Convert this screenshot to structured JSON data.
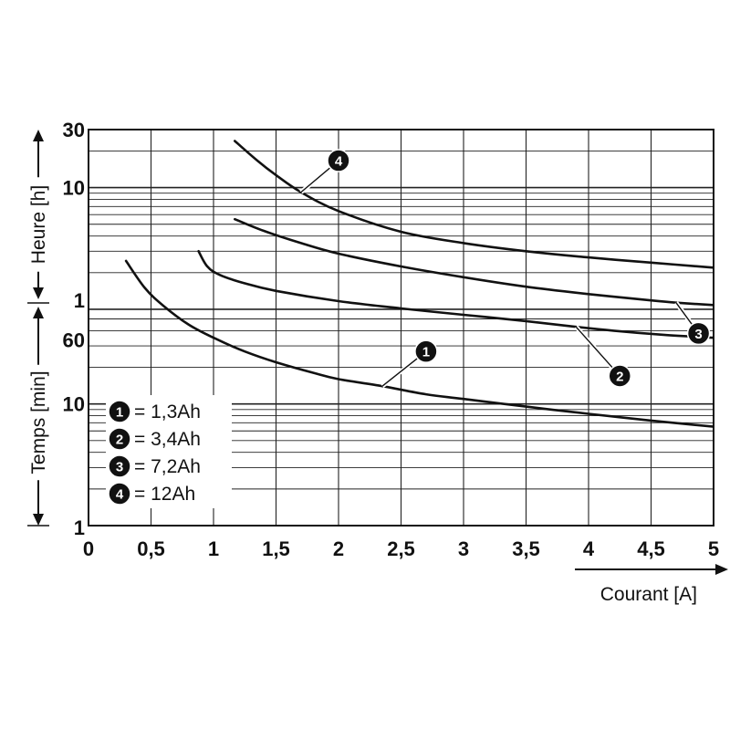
{
  "chart_data": {
    "type": "line",
    "x_axis": {
      "label": "Courant [A]",
      "range": [
        0,
        5
      ],
      "ticks": [
        {
          "value": 0,
          "label": "0"
        },
        {
          "value": 0.5,
          "label": "0,5"
        },
        {
          "value": 1,
          "label": "1"
        },
        {
          "value": 1.5,
          "label": "1,5"
        },
        {
          "value": 2,
          "label": "2"
        },
        {
          "value": 2.5,
          "label": "2,5"
        },
        {
          "value": 3,
          "label": "3"
        },
        {
          "value": 3.5,
          "label": "3,5"
        },
        {
          "value": 4,
          "label": "4"
        },
        {
          "value": 4.5,
          "label": "4,5"
        },
        {
          "value": 5,
          "label": "5"
        }
      ]
    },
    "y_axis": {
      "scale": "log",
      "unit": "min",
      "range_minutes": [
        1,
        1800
      ],
      "upper_label": "Heure [h]",
      "lower_label": "Temps [min]",
      "tick_labels": [
        {
          "value_minutes": 1800,
          "label": "30"
        },
        {
          "value_minutes": 600,
          "label": "10"
        },
        {
          "value_minutes": 60,
          "label": "1"
        },
        {
          "value_minutes": 40,
          "label": "60"
        },
        {
          "value_minutes": 10,
          "label": "10"
        },
        {
          "value_minutes": 1,
          "label": "1"
        }
      ]
    },
    "grid": true,
    "legend_position": "bottom-left",
    "series": [
      {
        "id": "1",
        "name": "1,3Ah",
        "x": [
          0.3,
          0.45,
          0.6,
          0.8,
          1.0,
          1.25,
          1.5,
          1.8,
          2.0,
          2.35,
          2.7,
          3.0,
          3.5,
          4.0,
          4.5,
          5.0
        ],
        "y_minutes": [
          150,
          90,
          64,
          45,
          35,
          27,
          22,
          18,
          16,
          14,
          12,
          11,
          9.5,
          8.3,
          7.3,
          6.5
        ]
      },
      {
        "id": "2",
        "name": "3,4Ah",
        "x": [
          0.88,
          0.95,
          1.05,
          1.25,
          1.5,
          2.0,
          2.5,
          3.0,
          3.5,
          3.9,
          4.2,
          4.6,
          5.0
        ],
        "y_minutes": [
          180,
          135,
          115,
          98,
          85,
          70,
          61,
          54,
          48,
          43,
          40,
          37,
          35
        ]
      },
      {
        "id": "3",
        "name": "7,2Ah",
        "x": [
          1.17,
          1.4,
          1.7,
          2.0,
          2.5,
          3.0,
          3.5,
          4.0,
          4.5,
          4.7,
          5.0
        ],
        "y_minutes": [
          330,
          265,
          210,
          172,
          135,
          110,
          92,
          80,
          71,
          68,
          65
        ]
      },
      {
        "id": "4",
        "name": "12Ah",
        "x": [
          1.17,
          1.35,
          1.5,
          1.7,
          2.0,
          2.5,
          3.0,
          3.5,
          4.0,
          4.5,
          5.0
        ],
        "y_minutes": [
          1450,
          1000,
          760,
          550,
          385,
          260,
          210,
          180,
          160,
          145,
          132
        ]
      }
    ],
    "callouts": [
      {
        "series": "1",
        "badge": "1",
        "point": [
          2.35,
          14
        ],
        "badge_at": [
          2.7,
          27
        ]
      },
      {
        "series": "2",
        "badge": "2",
        "point": [
          3.9,
          43
        ],
        "badge_at": [
          4.25,
          17
        ]
      },
      {
        "series": "3",
        "badge": "3",
        "point": [
          4.7,
          68
        ],
        "badge_at": [
          4.88,
          38
        ]
      },
      {
        "series": "4",
        "badge": "4",
        "point": [
          1.7,
          550
        ],
        "badge_at": [
          2.0,
          1000
        ]
      }
    ],
    "legend": [
      {
        "badge": "1",
        "text": "= 1,3Ah"
      },
      {
        "badge": "2",
        "text": "= 3,4Ah"
      },
      {
        "badge": "3",
        "text": "= 7,2Ah"
      },
      {
        "badge": "4",
        "text": "= 12Ah"
      }
    ]
  }
}
